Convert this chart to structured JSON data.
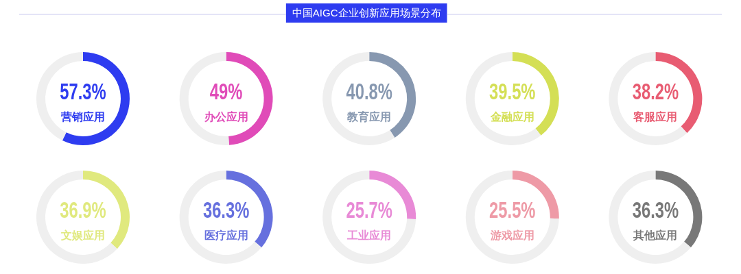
{
  "chart_data": [
    {
      "type": "donut",
      "categories": [
        "营销应用",
        null
      ],
      "values": [
        57.3,
        42.7
      ],
      "colors": [
        "#2e3cf0",
        "#efefef"
      ],
      "value_labels": [
        "57.3%",
        null
      ]
    },
    {
      "type": "donut",
      "categories": [
        "办公应用",
        null
      ],
      "values": [
        49,
        51
      ],
      "colors": [
        "#e04bb8",
        "#efefef"
      ],
      "value_labels": [
        "49%",
        null
      ]
    },
    {
      "type": "donut",
      "title": "中国AIGC企业创新应用场景分布",
      "categories": [
        "教育应用",
        null
      ],
      "values": [
        40.8,
        59.2
      ],
      "colors": [
        "#8798b0",
        "#efefef"
      ],
      "value_labels": [
        "40.8%",
        null
      ]
    },
    {
      "type": "donut",
      "categories": [
        "金融应用",
        null
      ],
      "values": [
        39.5,
        60.5
      ],
      "colors": [
        "#d4df55",
        "#efefef"
      ],
      "value_labels": [
        "39.5%",
        null
      ]
    },
    {
      "type": "donut",
      "categories": [
        "客服应用",
        null
      ],
      "values": [
        38.2,
        61.8
      ],
      "colors": [
        "#e85c72",
        "#efefef"
      ],
      "value_labels": [
        "38.2%",
        null
      ]
    },
    {
      "type": "donut",
      "categories": [
        "文娱应用",
        null
      ],
      "values": [
        36.9,
        63.1
      ],
      "colors": [
        "#e0e97e",
        "#efefef"
      ],
      "value_labels": [
        "36.9%",
        null
      ]
    },
    {
      "type": "donut",
      "categories": [
        "医疗应用",
        null
      ],
      "values": [
        36.3,
        63.7
      ],
      "colors": [
        "#6670de",
        "#efefef"
      ],
      "value_labels": [
        "36.3%",
        null
      ]
    },
    {
      "type": "donut",
      "categories": [
        "工业应用",
        null
      ],
      "values": [
        25.7,
        74.3
      ],
      "colors": [
        "#e88ad6",
        "#efefef"
      ],
      "value_labels": [
        "25.7%",
        null
      ]
    },
    {
      "type": "donut",
      "categories": [
        "游戏应用",
        null
      ],
      "values": [
        25.5,
        74.5
      ],
      "colors": [
        "#ee9aa6",
        "#efefef"
      ],
      "value_labels": [
        "25.5%",
        null
      ]
    },
    {
      "type": "donut",
      "categories": [
        "其他应用",
        null
      ],
      "values": [
        36.3,
        63.7
      ],
      "colors": [
        "#787878",
        "#efefef"
      ],
      "value_labels": [
        "36.3%",
        null
      ]
    }
  ]
}
